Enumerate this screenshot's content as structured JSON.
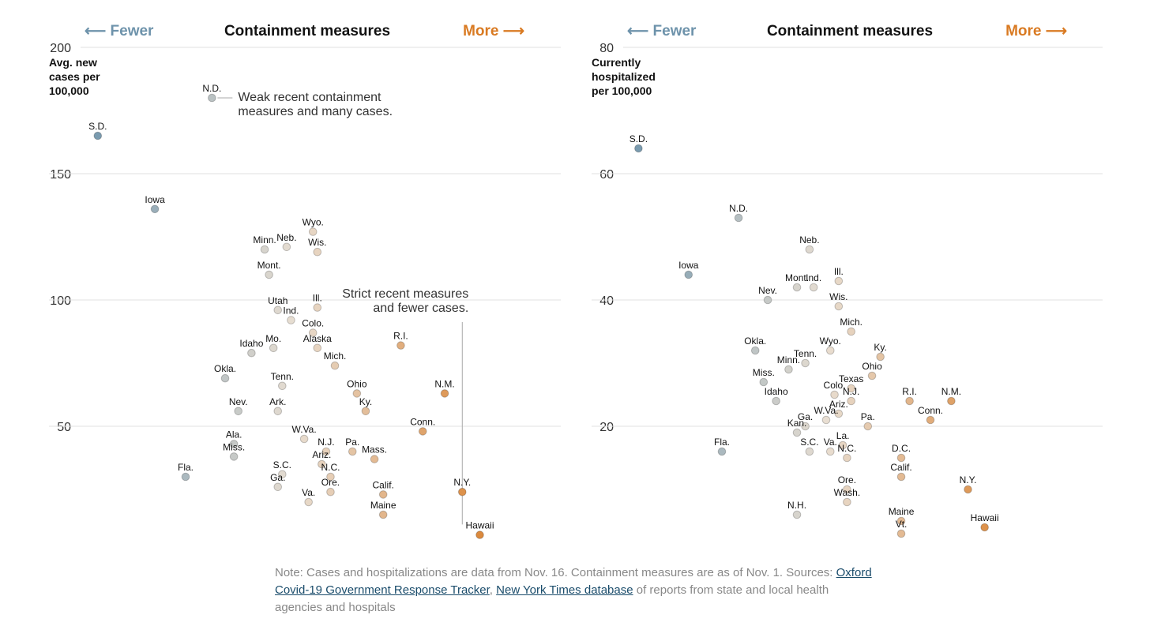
{
  "colors": {
    "fewer": "#6e93ab",
    "more": "#d97a22",
    "grid": "#e2e2e2",
    "title": "#121212",
    "note": "#888888",
    "link": "#1a4c6b",
    "point_stroke": "#b9b2a8"
  },
  "direction_labels": {
    "fewer": "⟵ Fewer",
    "more": "More ⟶"
  },
  "note": {
    "prefix": "Note: Cases and hospitalizations are data from Nov. 16. Containment measures are as of Nov. 1. Sources:",
    "link1": "Oxford Covid-19 Government Response Tracker",
    "separator": ", ",
    "link2": "New York Times database",
    "suffix": " of reports from state and local health agencies and hospitals"
  },
  "chart_data": [
    {
      "type": "scatter",
      "title": "Containment measures",
      "xlabel": "Containment measures",
      "ylabel_lines": [
        "Avg. new",
        "cases per",
        "100,000"
      ],
      "xlim": [
        0,
        100
      ],
      "ylim": [
        0,
        200
      ],
      "yticks": [
        50,
        100,
        150,
        200
      ],
      "grid": true,
      "annotations": [
        {
          "id": "weak",
          "lines": [
            "Weak recent containment",
            "measures and many cases."
          ],
          "anchor_x": 31,
          "anchor_y": 180
        },
        {
          "id": "strict",
          "lines": [
            "Strict recent measures",
            "and fewer cases."
          ],
          "anchor_x": 88,
          "anchor_y": 8
        }
      ],
      "points": [
        {
          "label": "N.D.",
          "x": 31,
          "y": 180
        },
        {
          "label": "S.D.",
          "x": 5,
          "y": 165
        },
        {
          "label": "Iowa",
          "x": 18,
          "y": 136
        },
        {
          "label": "Wyo.",
          "x": 54,
          "y": 127
        },
        {
          "label": "Wis.",
          "x": 55,
          "y": 119
        },
        {
          "label": "Minn.",
          "x": 43,
          "y": 120
        },
        {
          "label": "Neb.",
          "x": 48,
          "y": 121
        },
        {
          "label": "Mont.",
          "x": 44,
          "y": 110
        },
        {
          "label": "Utah",
          "x": 46,
          "y": 96
        },
        {
          "label": "Ind.",
          "x": 49,
          "y": 92
        },
        {
          "label": "Ill.",
          "x": 55,
          "y": 97
        },
        {
          "label": "Colo.",
          "x": 54,
          "y": 87
        },
        {
          "label": "Alaska",
          "x": 55,
          "y": 81
        },
        {
          "label": "Idaho",
          "x": 40,
          "y": 79
        },
        {
          "label": "Mo.",
          "x": 45,
          "y": 81
        },
        {
          "label": "Mich.",
          "x": 59,
          "y": 74
        },
        {
          "label": "R.I.",
          "x": 74,
          "y": 82
        },
        {
          "label": "Okla.",
          "x": 34,
          "y": 69
        },
        {
          "label": "Tenn.",
          "x": 47,
          "y": 66
        },
        {
          "label": "Ohio",
          "x": 64,
          "y": 63
        },
        {
          "label": "N.M.",
          "x": 84,
          "y": 63
        },
        {
          "label": "Nev.",
          "x": 37,
          "y": 56
        },
        {
          "label": "Ark.",
          "x": 46,
          "y": 56
        },
        {
          "label": "Ky.",
          "x": 66,
          "y": 56
        },
        {
          "label": "Conn.",
          "x": 79,
          "y": 48
        },
        {
          "label": "W.Va.",
          "x": 52,
          "y": 45
        },
        {
          "label": "Ala.",
          "x": 36,
          "y": 43
        },
        {
          "label": "Miss.",
          "x": 36,
          "y": 38
        },
        {
          "label": "N.J.",
          "x": 57,
          "y": 40
        },
        {
          "label": "Pa.",
          "x": 63,
          "y": 40
        },
        {
          "label": "Mass.",
          "x": 68,
          "y": 37
        },
        {
          "label": "Ariz.",
          "x": 56,
          "y": 35
        },
        {
          "label": "S.C.",
          "x": 47,
          "y": 31
        },
        {
          "label": "N.C.",
          "x": 58,
          "y": 30
        },
        {
          "label": "Fla.",
          "x": 25,
          "y": 30
        },
        {
          "label": "Ga.",
          "x": 46,
          "y": 26
        },
        {
          "label": "Ore.",
          "x": 58,
          "y": 24
        },
        {
          "label": "N.Y.",
          "x": 88,
          "y": 24
        },
        {
          "label": "Calif.",
          "x": 70,
          "y": 23
        },
        {
          "label": "Va.",
          "x": 53,
          "y": 20
        },
        {
          "label": "Maine",
          "x": 70,
          "y": 15
        },
        {
          "label": "Hawaii",
          "x": 92,
          "y": 7
        }
      ]
    },
    {
      "type": "scatter",
      "title": "Containment measures",
      "xlabel": "Containment measures",
      "ylabel_lines": [
        "Currently",
        "hospitalized",
        "per 100,000"
      ],
      "xlim": [
        0,
        100
      ],
      "ylim": [
        0,
        80
      ],
      "yticks": [
        20,
        40,
        60,
        80
      ],
      "grid": true,
      "annotations": [],
      "points": [
        {
          "label": "S.D.",
          "x": 5,
          "y": 64
        },
        {
          "label": "N.D.",
          "x": 29,
          "y": 53
        },
        {
          "label": "Neb.",
          "x": 46,
          "y": 48
        },
        {
          "label": "Iowa",
          "x": 17,
          "y": 44
        },
        {
          "label": "Ill.",
          "x": 53,
          "y": 43
        },
        {
          "label": "Mont.",
          "x": 43,
          "y": 42
        },
        {
          "label": "Ind.",
          "x": 47,
          "y": 42
        },
        {
          "label": "Nev.",
          "x": 36,
          "y": 40
        },
        {
          "label": "Wis.",
          "x": 53,
          "y": 39
        },
        {
          "label": "Mich.",
          "x": 56,
          "y": 35
        },
        {
          "label": "Okla.",
          "x": 33,
          "y": 32
        },
        {
          "label": "Wyo.",
          "x": 51,
          "y": 32
        },
        {
          "label": "Ky.",
          "x": 63,
          "y": 31
        },
        {
          "label": "Tenn.",
          "x": 45,
          "y": 30
        },
        {
          "label": "Minn.",
          "x": 41,
          "y": 29
        },
        {
          "label": "Ohio",
          "x": 61,
          "y": 28
        },
        {
          "label": "Miss.",
          "x": 35,
          "y": 27
        },
        {
          "label": "Texas",
          "x": 56,
          "y": 26
        },
        {
          "label": "Colo.",
          "x": 52,
          "y": 25
        },
        {
          "label": "Idaho",
          "x": 38,
          "y": 24
        },
        {
          "label": "N.J.",
          "x": 56,
          "y": 24
        },
        {
          "label": "R.I.",
          "x": 70,
          "y": 24
        },
        {
          "label": "N.M.",
          "x": 80,
          "y": 24
        },
        {
          "label": "Ariz.",
          "x": 53,
          "y": 22
        },
        {
          "label": "Conn.",
          "x": 75,
          "y": 21
        },
        {
          "label": "W.Va.",
          "x": 50,
          "y": 21
        },
        {
          "label": "Pa.",
          "x": 60,
          "y": 20
        },
        {
          "label": "Ga.",
          "x": 45,
          "y": 20
        },
        {
          "label": "Kan.",
          "x": 43,
          "y": 19
        },
        {
          "label": "La.",
          "x": 54,
          "y": 17
        },
        {
          "label": "S.C.",
          "x": 46,
          "y": 16
        },
        {
          "label": "Va.",
          "x": 51,
          "y": 16
        },
        {
          "label": "N.C.",
          "x": 55,
          "y": 15
        },
        {
          "label": "Fla.",
          "x": 25,
          "y": 16
        },
        {
          "label": "D.C.",
          "x": 68,
          "y": 15
        },
        {
          "label": "Calif.",
          "x": 68,
          "y": 12
        },
        {
          "label": "Ore.",
          "x": 55,
          "y": 10
        },
        {
          "label": "Wash.",
          "x": 55,
          "y": 8
        },
        {
          "label": "N.Y.",
          "x": 84,
          "y": 10
        },
        {
          "label": "N.H.",
          "x": 43,
          "y": 6
        },
        {
          "label": "Maine",
          "x": 68,
          "y": 5
        },
        {
          "label": "Hawaii",
          "x": 88,
          "y": 4
        },
        {
          "label": "Vt.",
          "x": 68,
          "y": 3
        }
      ]
    }
  ]
}
